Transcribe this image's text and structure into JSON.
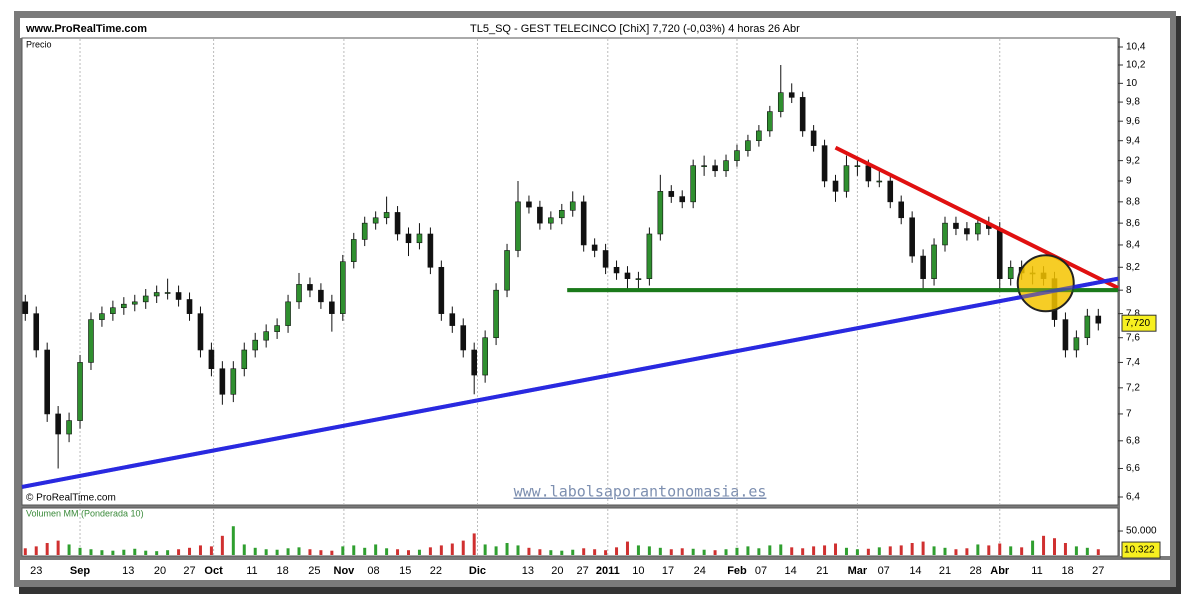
{
  "chart_data": {
    "type": "candlestick",
    "site": "www.ProRealTime.com",
    "title": "TL5_SQ - GEST TELECINCO [ChiX]   7,720 (-0,03%)   4 horas  26 Abr",
    "y_label": "Precio",
    "copyright": "© ProRealTime.com",
    "watermark": "www.labolsaporantonomasia.es",
    "volume_label": "Volumen MM (Ponderada 10)",
    "log_scale": true,
    "up_color": "#2f8f2f",
    "down_color": "#111111",
    "xlim": [
      -0.3,
      99.8
    ],
    "ylim": [
      6.4,
      10.4
    ],
    "yticks": [
      {
        "value": 6.4,
        "label": "6,4"
      },
      {
        "value": 6.6,
        "label": "6,6"
      },
      {
        "value": 6.8,
        "label": "6,8"
      },
      7,
      {
        "value": 7.2,
        "label": "7,2"
      },
      {
        "value": 7.4,
        "label": "7,4"
      },
      {
        "value": 7.6,
        "label": "7,6"
      },
      {
        "value": 7.8,
        "label": "7,8"
      },
      8,
      {
        "value": 8.2,
        "label": "8,2"
      },
      {
        "value": 8.4,
        "label": "8,4"
      },
      {
        "value": 8.6,
        "label": "8,6"
      },
      {
        "value": 8.8,
        "label": "8,8"
      },
      9,
      {
        "value": 9.2,
        "label": "9,2"
      },
      {
        "value": 9.4,
        "label": "9,4"
      },
      {
        "value": 9.6,
        "label": "9,6"
      },
      {
        "value": 9.8,
        "label": "9,8"
      },
      10,
      {
        "value": 10.2,
        "label": "10,2"
      },
      {
        "value": 10.4,
        "label": "10,4"
      }
    ],
    "xticks": [
      {
        "value": 1.0,
        "label": "23"
      },
      {
        "value": 5.0,
        "label": "Sep",
        "bold": true
      },
      {
        "value": 9.4,
        "label": "13"
      },
      {
        "value": 12.3,
        "label": "20"
      },
      {
        "value": 15.0,
        "label": "27"
      },
      {
        "value": 17.2,
        "label": "Oct",
        "bold": true
      },
      {
        "value": 20.7,
        "label": "11"
      },
      {
        "value": 23.5,
        "label": "18"
      },
      {
        "value": 26.4,
        "label": "25"
      },
      {
        "value": 29.1,
        "label": "Nov",
        "bold": true
      },
      {
        "value": 31.8,
        "label": "08"
      },
      {
        "value": 34.7,
        "label": "15"
      },
      {
        "value": 37.5,
        "label": "22"
      },
      {
        "value": 41.3,
        "label": "Dic",
        "bold": true
      },
      {
        "value": 45.9,
        "label": "13"
      },
      {
        "value": 48.6,
        "label": "20"
      },
      {
        "value": 50.9,
        "label": "27"
      },
      {
        "value": 53.2,
        "label": "2011",
        "bold": true
      },
      {
        "value": 56.0,
        "label": "10"
      },
      {
        "value": 58.7,
        "label": "17"
      },
      {
        "value": 61.6,
        "label": "24"
      },
      {
        "value": 65.0,
        "label": "Feb",
        "bold": true
      },
      {
        "value": 67.2,
        "label": "07"
      },
      {
        "value": 69.9,
        "label": "14"
      },
      {
        "value": 72.8,
        "label": "21"
      },
      {
        "value": 76.0,
        "label": "Mar",
        "bold": true
      },
      {
        "value": 78.4,
        "label": "07"
      },
      {
        "value": 81.3,
        "label": "14"
      },
      {
        "value": 84.0,
        "label": "21"
      },
      {
        "value": 86.8,
        "label": "28"
      },
      {
        "value": 89.0,
        "label": "Abr",
        "bold": true
      },
      {
        "value": 92.4,
        "label": "11"
      },
      {
        "value": 95.2,
        "label": "18"
      },
      {
        "value": 98.0,
        "label": "27"
      }
    ],
    "open": [
      7.9,
      7.8,
      7.5,
      7.0,
      6.85,
      6.95,
      7.4,
      7.75,
      7.8,
      7.85,
      7.88,
      7.9,
      7.95,
      7.98,
      7.98,
      7.92,
      7.8,
      7.5,
      7.35,
      7.15,
      7.35,
      7.5,
      7.58,
      7.65,
      7.7,
      7.9,
      8.05,
      8.0,
      7.9,
      7.8,
      8.25,
      8.45,
      8.6,
      8.65,
      8.7,
      8.5,
      8.42,
      8.5,
      8.2,
      7.8,
      7.7,
      7.5,
      7.3,
      7.6,
      8.0,
      8.35,
      8.8,
      8.75,
      8.6,
      8.65,
      8.72,
      8.8,
      8.4,
      8.35,
      8.2,
      8.15,
      8.1,
      8.1,
      8.5,
      8.9,
      8.85,
      8.8,
      9.15,
      9.15,
      9.1,
      9.2,
      9.3,
      9.4,
      9.5,
      9.7,
      9.9,
      9.85,
      9.5,
      9.35,
      9.0,
      8.9,
      9.15,
      9.15,
      9.0,
      9.0,
      8.8,
      8.65,
      8.3,
      8.1,
      8.4,
      8.6,
      8.55,
      8.5,
      8.6,
      8.55,
      8.1,
      8.2,
      8.15,
      8.15,
      8.1,
      7.75,
      7.5,
      7.6,
      7.78
    ],
    "high": [
      7.96,
      7.86,
      7.56,
      7.06,
      7.01,
      7.46,
      7.81,
      7.86,
      7.91,
      7.94,
      7.96,
      8.01,
      8.04,
      8.1,
      8.04,
      7.98,
      7.86,
      7.56,
      7.41,
      7.41,
      7.56,
      7.64,
      7.71,
      7.76,
      7.96,
      8.15,
      8.11,
      8.06,
      7.96,
      8.31,
      8.51,
      8.66,
      8.71,
      8.85,
      8.76,
      8.56,
      8.6,
      8.56,
      8.26,
      7.86,
      7.76,
      7.56,
      7.66,
      8.06,
      8.41,
      9.0,
      8.86,
      8.81,
      8.71,
      8.78,
      8.9,
      8.86,
      8.46,
      8.41,
      8.26,
      8.21,
      8.16,
      8.56,
      9.06,
      8.96,
      8.91,
      9.21,
      9.25,
      9.21,
      9.26,
      9.36,
      9.46,
      9.56,
      9.76,
      10.2,
      10.0,
      9.91,
      9.56,
      9.41,
      9.06,
      9.25,
      9.21,
      9.21,
      9.1,
      9.06,
      8.86,
      8.71,
      8.36,
      8.46,
      8.66,
      8.66,
      8.61,
      8.66,
      8.66,
      8.61,
      8.26,
      8.26,
      8.21,
      8.21,
      8.16,
      7.81,
      7.66,
      7.84,
      7.84
    ],
    "low": [
      7.74,
      7.44,
      6.94,
      6.6,
      6.79,
      6.89,
      7.34,
      7.69,
      7.74,
      7.79,
      7.82,
      7.84,
      7.89,
      7.92,
      7.86,
      7.74,
      7.44,
      7.29,
      7.07,
      7.09,
      7.29,
      7.44,
      7.52,
      7.59,
      7.64,
      7.84,
      7.94,
      7.84,
      7.65,
      7.74,
      8.19,
      8.39,
      8.54,
      8.59,
      8.44,
      8.3,
      8.36,
      8.14,
      7.74,
      7.64,
      7.44,
      7.15,
      7.24,
      7.54,
      7.94,
      8.29,
      8.69,
      8.54,
      8.54,
      8.59,
      8.66,
      8.34,
      8.29,
      8.14,
      8.09,
      8.0,
      8.0,
      8.04,
      8.44,
      8.79,
      8.74,
      8.74,
      9.05,
      9.04,
      9.04,
      9.14,
      9.24,
      9.34,
      9.44,
      9.64,
      9.79,
      9.44,
      9.29,
      8.94,
      8.8,
      8.84,
      9.05,
      8.94,
      8.94,
      8.74,
      8.59,
      8.24,
      8.0,
      8.04,
      8.34,
      8.49,
      8.44,
      8.44,
      8.49,
      8.0,
      8.04,
      8.09,
      8.05,
      8.04,
      7.69,
      7.44,
      7.44,
      7.54,
      7.66
    ],
    "close": [
      7.8,
      7.5,
      7.0,
      6.85,
      6.95,
      7.4,
      7.75,
      7.8,
      7.85,
      7.88,
      7.9,
      7.95,
      7.98,
      7.98,
      7.92,
      7.8,
      7.5,
      7.35,
      7.15,
      7.35,
      7.5,
      7.58,
      7.65,
      7.7,
      7.9,
      8.05,
      8.0,
      7.9,
      7.8,
      8.25,
      8.45,
      8.6,
      8.65,
      8.7,
      8.5,
      8.42,
      8.5,
      8.2,
      7.8,
      7.7,
      7.5,
      7.3,
      7.6,
      8.0,
      8.35,
      8.8,
      8.75,
      8.6,
      8.65,
      8.72,
      8.8,
      8.4,
      8.35,
      8.2,
      8.15,
      8.1,
      8.1,
      8.5,
      8.9,
      8.85,
      8.8,
      9.15,
      9.15,
      9.1,
      9.2,
      9.3,
      9.4,
      9.5,
      9.7,
      9.9,
      9.85,
      9.5,
      9.35,
      9.0,
      8.9,
      9.15,
      9.15,
      9.0,
      9.0,
      8.8,
      8.65,
      8.3,
      8.1,
      8.4,
      8.6,
      8.55,
      8.5,
      8.6,
      8.55,
      8.1,
      8.2,
      8.15,
      8.15,
      8.1,
      7.75,
      7.5,
      7.6,
      7.78,
      7.72
    ],
    "last_price": {
      "value": 7.72,
      "label": "7,720"
    },
    "trendlines": [
      {
        "color": "#e01010",
        "x": [
          74.0,
          99.8
        ],
        "y": [
          9.33,
          8.02
        ]
      },
      {
        "color": "#1a7a1a",
        "x": [
          49.5,
          99.8
        ],
        "y": [
          8.0,
          8.0
        ]
      },
      {
        "color": "#2a2ae0",
        "x": [
          -0.3,
          99.8
        ],
        "y": [
          6.47,
          8.1
        ]
      }
    ],
    "highlight": {
      "x": 93.2,
      "y": 8.06,
      "color": "#f5c400"
    },
    "volume": [
      14000,
      18000,
      25000,
      30000,
      22000,
      15000,
      12000,
      10000,
      9000,
      11000,
      13000,
      9000,
      8000,
      10000,
      12000,
      15000,
      20000,
      18000,
      40000,
      60000,
      22000,
      15000,
      12000,
      11000,
      14000,
      16000,
      12000,
      10000,
      9000,
      18000,
      20000,
      15000,
      22000,
      14000,
      12000,
      10000,
      11000,
      16000,
      20000,
      24000,
      30000,
      45000,
      22000,
      18000,
      25000,
      20000,
      15000,
      12000,
      10000,
      9000,
      11000,
      14000,
      12000,
      10000,
      16000,
      28000,
      20000,
      18000,
      15000,
      12000,
      14000,
      13000,
      11000,
      10000,
      12000,
      15000,
      18000,
      14000,
      20000,
      22000,
      16000,
      14000,
      18000,
      20000,
      24000,
      15000,
      12000,
      13000,
      16000,
      18000,
      20000,
      25000,
      28000,
      18000,
      15000,
      12000,
      14000,
      22000,
      20000,
      24000,
      18000,
      16000,
      30000,
      40000,
      35000,
      25000,
      18000,
      15000,
      12000
    ],
    "volume_ylim": [
      0,
      98000
    ],
    "volume_yticks": [
      {
        "value": 50000,
        "label": "50.000"
      }
    ],
    "volume_last": {
      "value": 10322,
      "label": "10.322"
    }
  }
}
